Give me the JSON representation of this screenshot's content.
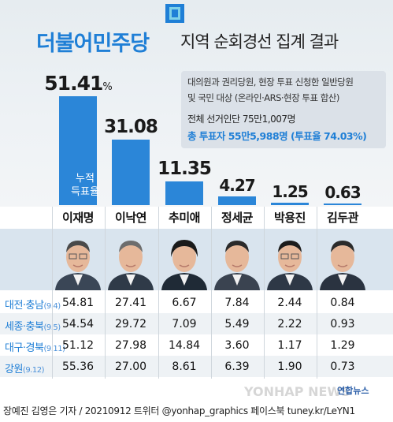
{
  "header": {
    "party": "더불어민주당",
    "title": "지역 순회경선 집계 결과"
  },
  "info": {
    "line1": "대의원과 권리당원, 현장 투표 신청한 일반당원",
    "line2": "및 국민 대상 (온라인·ARS·현장 투표 합산)",
    "line3": "전체 선거인단 75만1,007명",
    "line4": "총 투표자 55만5,988명 (투표율 74.03%)"
  },
  "cumulative_label": [
    "누적",
    "득표율"
  ],
  "percent_sign": "%",
  "colors": {
    "bar": "#2b86d8",
    "party": "#1f7fd6",
    "region_label": "#1f7fd6"
  },
  "chart_data": {
    "type": "bar",
    "categories": [
      "이재명",
      "이낙연",
      "추미애",
      "정세균",
      "박용진",
      "김두관"
    ],
    "values": [
      51.41,
      31.08,
      11.35,
      4.27,
      1.25,
      0.63
    ],
    "value_labels": [
      "51.41",
      "31.08",
      "11.35",
      "4.27",
      "1.25",
      "0.63"
    ],
    "ylim": [
      0,
      55
    ],
    "grid": false,
    "legend": "none"
  },
  "table": {
    "rows": [
      {
        "region": "대전·충남",
        "date": "(9.4)",
        "values": [
          "54.81",
          "27.41",
          "6.67",
          "7.84",
          "2.44",
          "0.84"
        ]
      },
      {
        "region": "세종·충북",
        "date": "(9.5)",
        "values": [
          "54.54",
          "29.72",
          "7.09",
          "5.49",
          "2.22",
          "0.93"
        ]
      },
      {
        "region": "대구·경북",
        "date": "(9.11)",
        "values": [
          "51.12",
          "27.98",
          "14.84",
          "3.60",
          "1.17",
          "1.29"
        ]
      },
      {
        "region": "강원",
        "date": "(9.12)",
        "values": [
          "55.36",
          "27.00",
          "8.61",
          "6.39",
          "1.90",
          "0.73"
        ]
      }
    ]
  },
  "footer": "장예진 김영은 기자 / 20210912  트위터 @yonhap_graphics  페이스북 tuney.kr/LeYN1",
  "watermark": "YONHAP NEWS",
  "brand": "연합뉴스"
}
